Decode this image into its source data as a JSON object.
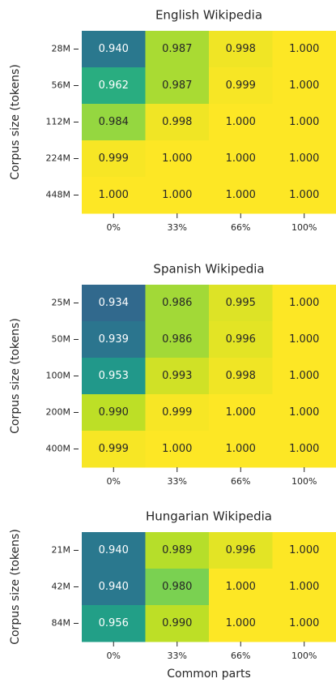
{
  "chart_data": [
    {
      "type": "heatmap",
      "title": "English Wikipedia",
      "ylabel": "Corpus size (tokens)",
      "categories": [
        "0%",
        "33%",
        "66%",
        "100%"
      ],
      "rows": [
        "28M",
        "56M",
        "112M",
        "224M",
        "448M"
      ],
      "colormap": "viridis",
      "clim": [
        0.9,
        1.0
      ],
      "values": [
        [
          0.94,
          0.987,
          0.998,
          1
        ],
        [
          0.962,
          0.987,
          0.999,
          1
        ],
        [
          0.984,
          0.998,
          1,
          1
        ],
        [
          0.999,
          1,
          1,
          1
        ],
        [
          1,
          1,
          1,
          1
        ]
      ],
      "value_labels": [
        [
          "0.940",
          "0.987",
          "0.998",
          "1.000"
        ],
        [
          "0.962",
          "0.987",
          "0.999",
          "1.000"
        ],
        [
          "0.984",
          "0.998",
          "1.000",
          "1.000"
        ],
        [
          "0.999",
          "1.000",
          "1.000",
          "1.000"
        ],
        [
          "1.000",
          "1.000",
          "1.000",
          "1.000"
        ]
      ]
    },
    {
      "type": "heatmap",
      "title": "Spanish Wikipedia",
      "ylabel": "Corpus size (tokens)",
      "categories": [
        "0%",
        "33%",
        "66%",
        "100%"
      ],
      "rows": [
        "25M",
        "50M",
        "100M",
        "200M",
        "400M"
      ],
      "colormap": "viridis",
      "clim": [
        0.9,
        1.0
      ],
      "values": [
        [
          0.934,
          0.986,
          0.995,
          1
        ],
        [
          0.939,
          0.986,
          0.996,
          1
        ],
        [
          0.953,
          0.993,
          0.998,
          1
        ],
        [
          0.99,
          0.999,
          1,
          1
        ],
        [
          0.999,
          1,
          1,
          1
        ]
      ],
      "value_labels": [
        [
          "0.934",
          "0.986",
          "0.995",
          "1.000"
        ],
        [
          "0.939",
          "0.986",
          "0.996",
          "1.000"
        ],
        [
          "0.953",
          "0.993",
          "0.998",
          "1.000"
        ],
        [
          "0.990",
          "0.999",
          "1.000",
          "1.000"
        ],
        [
          "0.999",
          "1.000",
          "1.000",
          "1.000"
        ]
      ]
    },
    {
      "type": "heatmap",
      "title": "Hungarian Wikipedia",
      "ylabel": "Corpus size (tokens)",
      "xlabel": "Common parts",
      "categories": [
        "0%",
        "33%",
        "66%",
        "100%"
      ],
      "rows": [
        "21M",
        "42M",
        "84M"
      ],
      "colormap": "viridis",
      "clim": [
        0.9,
        1.0
      ],
      "values": [
        [
          0.94,
          0.989,
          0.996,
          1
        ],
        [
          0.94,
          0.98,
          1,
          1
        ],
        [
          0.956,
          0.99,
          1,
          1
        ]
      ],
      "value_labels": [
        [
          "0.940",
          "0.989",
          "0.996",
          "1.000"
        ],
        [
          "0.940",
          "0.980",
          "1.000",
          "1.000"
        ],
        [
          "0.956",
          "0.990",
          "1.000",
          "1.000"
        ]
      ]
    }
  ]
}
